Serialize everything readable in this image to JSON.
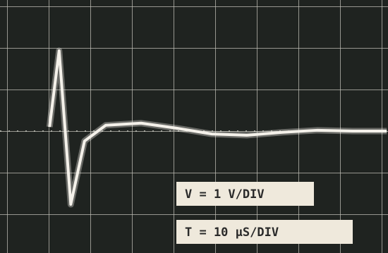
{
  "chart_data": {
    "type": "line",
    "x": [
      10.2,
      12.5,
      15.3,
      18.6,
      23.7,
      32.2,
      40.7,
      49.2,
      57.6,
      66.1,
      74.6,
      83.0,
      91.2
    ],
    "values": [
      0.1,
      1.93,
      -1.76,
      -0.24,
      0.14,
      0.19,
      0.07,
      -0.07,
      -0.1,
      -0.03,
      0.02,
      0,
      0
    ],
    "color": "#f4f1ea",
    "xlim": [
      -1.7,
      91.5
    ],
    "ylim": [
      -2.93,
      3.15
    ],
    "annotations": [
      "V = 1 V/DIV",
      "T = 10 μS/DIV"
    ]
  }
}
